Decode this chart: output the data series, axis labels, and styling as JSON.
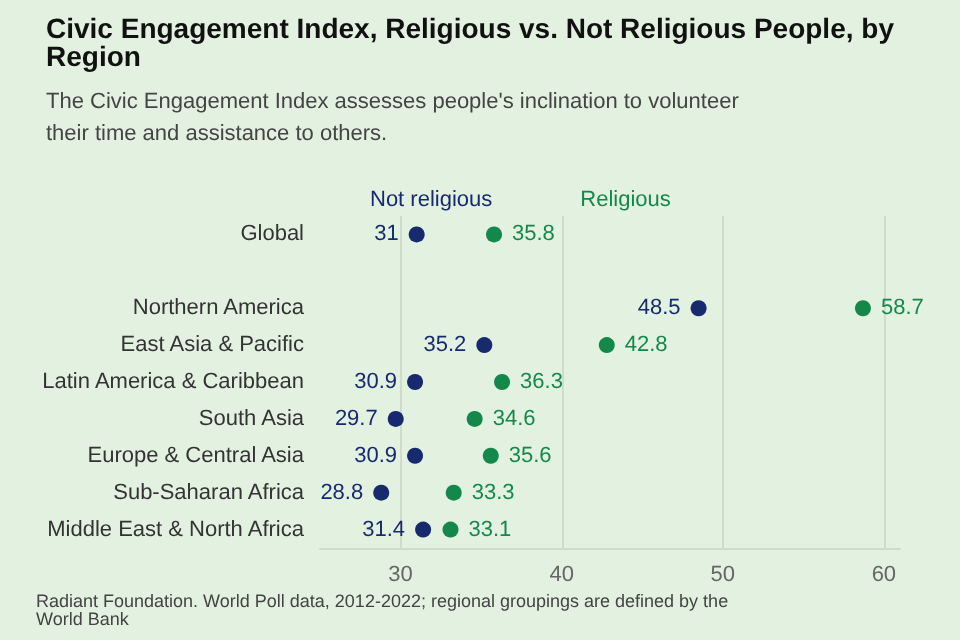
{
  "chart_data": {
    "type": "scatter",
    "orientation": "horizontal",
    "title": "Civic Engagement Index, Religious vs. Not Religious People, by Region",
    "subtitle": "The Civic Engagement Index assesses people's inclination to volunteer their time and assistance to others.",
    "categories": [
      "Global",
      null,
      "Northern America",
      "East Asia & Pacific",
      "Latin America & Caribbean",
      "South Asia",
      "Europe & Central Asia",
      "Sub-Saharan Africa",
      "Middle East & North Africa"
    ],
    "series": [
      {
        "name": "Not religious",
        "color": "#172a6e",
        "values": [
          31,
          null,
          48.5,
          35.2,
          30.9,
          29.7,
          30.9,
          28.8,
          31.4
        ]
      },
      {
        "name": "Religious",
        "color": "#14884a",
        "values": [
          35.8,
          null,
          58.7,
          42.8,
          36.3,
          34.6,
          35.6,
          33.3,
          33.1
        ]
      }
    ],
    "xlim": [
      25,
      61
    ],
    "xticks": [
      30,
      40,
      50,
      60
    ],
    "grid": "x",
    "legend": "top",
    "marker": "circle",
    "data_labels": true,
    "annotations": [
      "Radiant Foundation. World Poll data, 2012-2022; regional groupings are defined by the World Bank"
    ]
  }
}
